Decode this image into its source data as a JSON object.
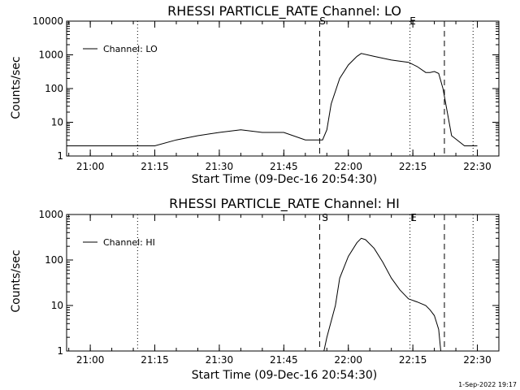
{
  "chart_data": [
    {
      "type": "line",
      "title": "RHESSI PARTICLE_RATE Channel: LO",
      "xlabel": "Start Time (09-Dec-16 20:54:30)",
      "ylabel": "Counts/sec",
      "yscale": "log",
      "ylim": [
        1,
        10000
      ],
      "xlim": [
        "20:54:30",
        "22:35:00"
      ],
      "yticks": [
        "1",
        "10",
        "100",
        "1000",
        "10000"
      ],
      "xticks": [
        "21:00",
        "21:15",
        "21:30",
        "21:45",
        "22:00",
        "22:15",
        "22:30"
      ],
      "legend_position": "top-left",
      "series": [
        {
          "name": "Channel: LO",
          "x": [
            "20:54:30",
            "21:00",
            "21:04",
            "21:06",
            "21:10",
            "21:11",
            "21:15",
            "21:20",
            "21:25",
            "21:30",
            "21:35",
            "21:40",
            "21:45",
            "21:50",
            "21:52",
            "21:54",
            "21:55",
            "21:56",
            "21:58",
            "22:00",
            "22:02",
            "22:03",
            "22:06",
            "22:10",
            "22:14",
            "22:16",
            "22:18",
            "22:19",
            "22:20",
            "22:21",
            "22:22",
            "22:23",
            "22:24",
            "22:27",
            "22:29",
            "22:30"
          ],
          "y": [
            2,
            2,
            2,
            2,
            2,
            2,
            2,
            3,
            4,
            5,
            6,
            5,
            5,
            3,
            3,
            3,
            6,
            35,
            200,
            500,
            900,
            1100,
            900,
            700,
            600,
            450,
            300,
            300,
            320,
            280,
            100,
            20,
            4,
            2,
            2,
            2
          ]
        }
      ],
      "markers": {
        "vertical_dashed": [
          "21:53:20",
          "22:22:20"
        ],
        "vertical_dotted": [
          "21:11:00",
          "22:14:20",
          "22:29:00"
        ],
        "labels": [
          "S",
          "E"
        ]
      }
    },
    {
      "type": "line",
      "title": "RHESSI PARTICLE_RATE Channel: HI",
      "xlabel": "Start Time (09-Dec-16 20:54:30)",
      "ylabel": "Counts/sec",
      "yscale": "log",
      "ylim": [
        1,
        1000
      ],
      "xlim": [
        "20:54:30",
        "22:35:00"
      ],
      "yticks": [
        "1",
        "10",
        "100",
        "1000"
      ],
      "xticks": [
        "21:00",
        "21:15",
        "21:30",
        "21:45",
        "22:00",
        "22:15",
        "22:30"
      ],
      "legend_position": "top-left",
      "series": [
        {
          "name": "Channel: HI",
          "x": [
            "21:54:20",
            "21:55",
            "21:57",
            "21:58",
            "22:00",
            "22:02",
            "22:03",
            "22:04",
            "22:06",
            "22:08",
            "22:10",
            "22:12",
            "22:14",
            "22:16",
            "22:18",
            "22:19",
            "22:20",
            "22:21",
            "22:21:30"
          ],
          "y": [
            1,
            2,
            10,
            40,
            120,
            240,
            300,
            280,
            180,
            90,
            40,
            22,
            14,
            12,
            10,
            8,
            6,
            3,
            1
          ]
        }
      ],
      "markers": {
        "vertical_dashed": [
          "21:53:20",
          "22:22:20"
        ],
        "vertical_dotted": [
          "21:11:00",
          "22:14:20",
          "22:29:00"
        ],
        "labels": [
          "S",
          "E"
        ]
      }
    }
  ],
  "timestamp": "1-Sep-2022 19:17"
}
